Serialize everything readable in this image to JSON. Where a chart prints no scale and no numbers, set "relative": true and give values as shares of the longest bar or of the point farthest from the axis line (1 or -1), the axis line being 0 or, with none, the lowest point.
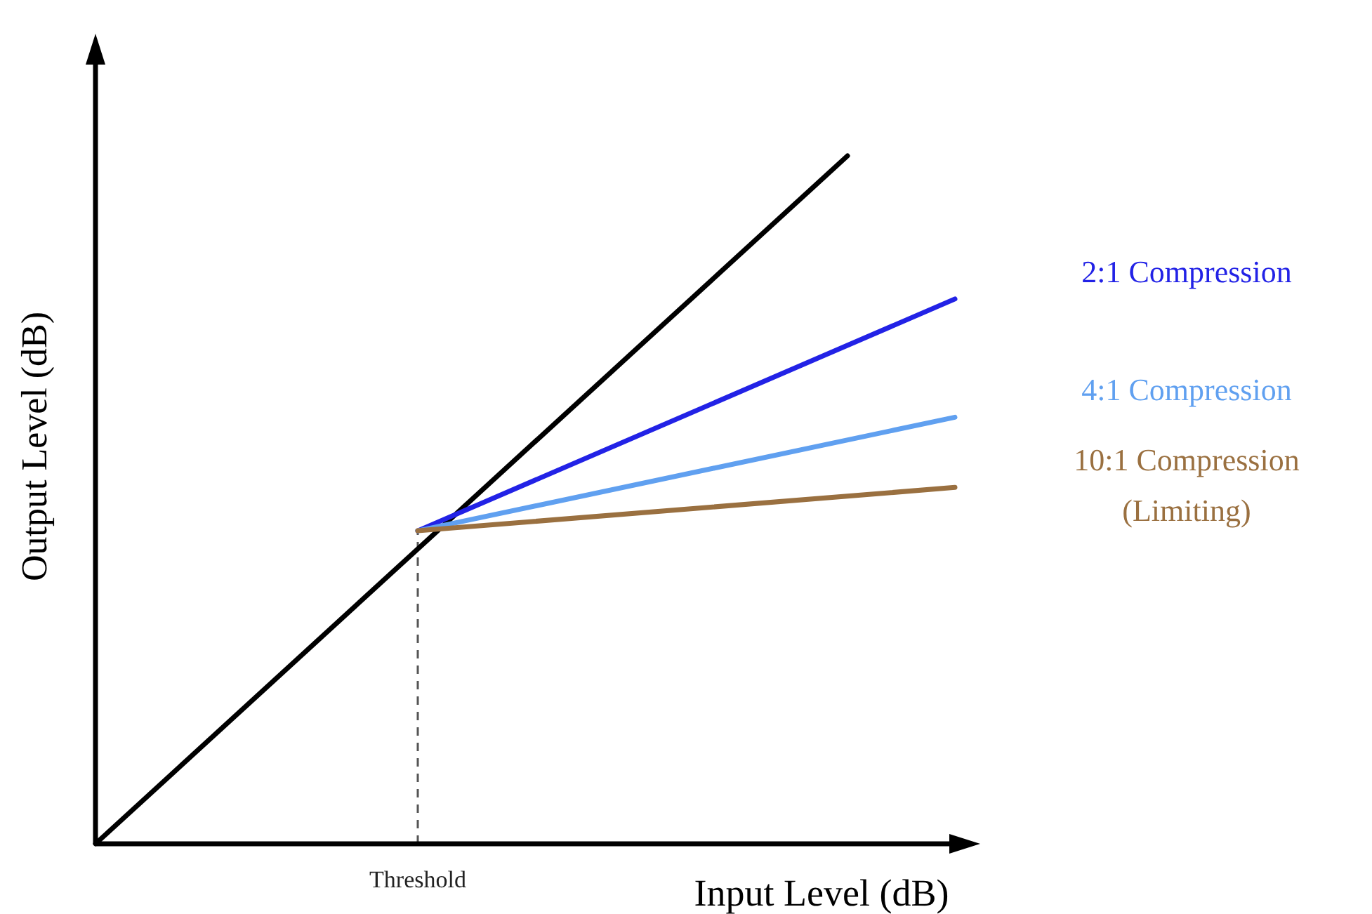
{
  "chart_data": {
    "type": "line",
    "relative": true,
    "xlabel": "Input Level (dB)",
    "ylabel": "Output Level (dB)",
    "marker": "none",
    "line_style": "solid",
    "categories": [
      null,
      null,
      null,
      null,
      null,
      null,
      null,
      null,
      null
    ],
    "series": [
      {
        "color": "#000000",
        "values": [
          0,
          null,
          null,
          null,
          null,
          null,
          null,
          1,
          null
        ]
      },
      {
        "name": "2:1 Compression",
        "color": "#2222e6",
        "values": [
          null,
          null,
          null,
          0.455,
          null,
          null,
          null,
          null,
          0.792
        ]
      },
      {
        "name": "4:1 Compression",
        "color": "#60a0f0",
        "values": [
          null,
          null,
          null,
          0.455,
          null,
          null,
          null,
          null,
          0.62
        ]
      },
      {
        "name": "10:1 Compression (Limiting)",
        "color": "#9a7040",
        "values": [
          null,
          null,
          null,
          0.455,
          null,
          null,
          null,
          null,
          0.518
        ]
      }
    ],
    "annotations": [
      "Threshold"
    ]
  }
}
